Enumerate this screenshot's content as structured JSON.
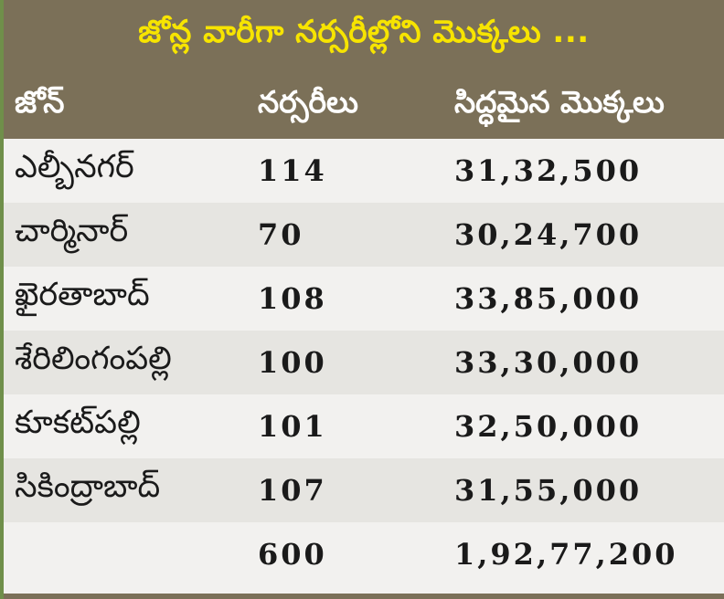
{
  "title": "జోన్ల వారీగా నర్సరీల్లోని మొక్కలు ...",
  "headers": {
    "zone": "జోన్",
    "nurseries": "నర్సరీలు",
    "plants": "సిద్ధమైన మొక్కలు"
  },
  "rows": [
    {
      "zone": "ఎల్బీనగర్",
      "nurseries": "114",
      "plants": "31,32,500"
    },
    {
      "zone": "చార్మినార్",
      "nurseries": "70",
      "plants": "30,24,700"
    },
    {
      "zone": "ఖైరతాబాద్",
      "nurseries": "108",
      "plants": "33,85,000"
    },
    {
      "zone": "శేరిలింగంపల్లి",
      "nurseries": "100",
      "plants": "33,30,000"
    },
    {
      "zone": "కూకట్‌పల్లి",
      "nurseries": "101",
      "plants": "32,50,000"
    },
    {
      "zone": "సికింద్రాబాద్",
      "nurseries": "107",
      "plants": "31,55,000"
    }
  ],
  "total": {
    "zone": "",
    "nurseries": "600",
    "plants": "1,92,77,200"
  },
  "colors": {
    "header_bg": "#7b7058",
    "title_text": "#f7e400",
    "alt_row": "#e6e5e1",
    "row_bg": "#f2f1ef"
  }
}
